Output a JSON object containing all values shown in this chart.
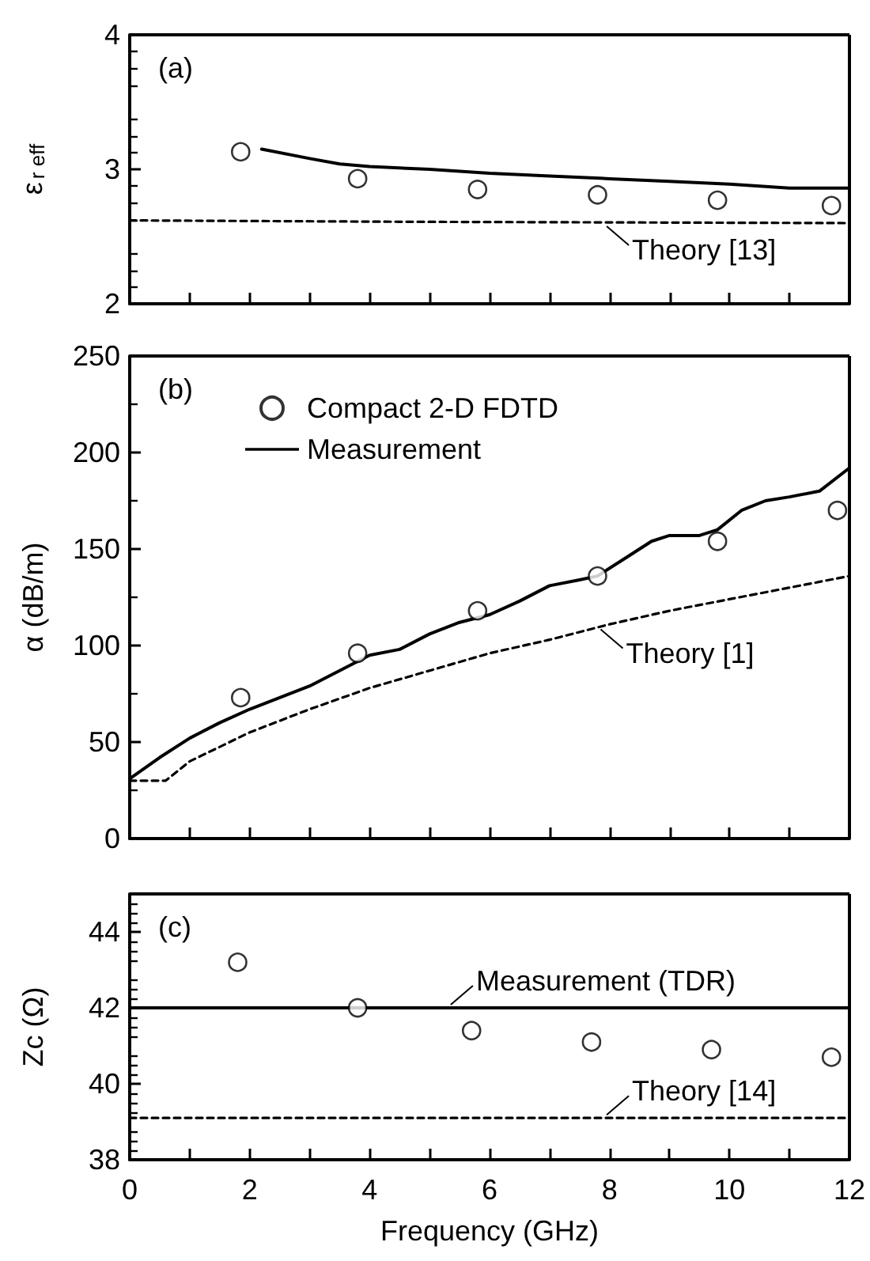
{
  "chart_data": [
    {
      "type": "line",
      "ylabel": "ε$_{r eff}$",
      "xlim": [
        0,
        12
      ],
      "xticks": [
        0,
        2,
        4,
        6,
        8,
        10,
        12
      ],
      "ylim": [
        2,
        4
      ],
      "yticks": [
        2,
        3,
        4
      ],
      "tick_labels": "y",
      "annotations": [
        "(a)",
        {
          "text": "Theory [13]",
          "x": 7.9,
          "y": 2.6
        }
      ],
      "series": [
        {
          "type": "scatter",
          "marker": "circle",
          "color": "#000000",
          "x": [
            1.85,
            3.8,
            5.8,
            7.8,
            9.8,
            11.7
          ],
          "values": [
            3.13,
            2.93,
            2.85,
            2.81,
            2.77,
            2.73
          ]
        },
        {
          "marker": "none",
          "line_style": "solid",
          "color": "#000000",
          "x": [
            2.2,
            3,
            3.5,
            4,
            5,
            6,
            7,
            8,
            9,
            10,
            11,
            12
          ],
          "values": [
            3.15,
            3.08,
            3.04,
            3.02,
            3.0,
            2.97,
            2.95,
            2.93,
            2.91,
            2.89,
            2.86,
            2.86
          ]
        },
        {
          "marker": "none",
          "line_style": "dashed",
          "color": "#000000",
          "x": [
            0,
            4.5,
            12
          ],
          "values": [
            2.62,
            2.61,
            2.6
          ]
        }
      ]
    },
    {
      "type": "line",
      "ylabel": "α (dB/m)",
      "xlim": [
        0,
        12
      ],
      "xticks": [
        0,
        2,
        4,
        6,
        8,
        10,
        12
      ],
      "ylim": [
        0,
        250
      ],
      "yticks": [
        0,
        50,
        100,
        150,
        200,
        250
      ],
      "tick_labels": "y",
      "legend": "top left",
      "annotations": [
        "(b)",
        {
          "text": "Theory [1]",
          "x": 7.8,
          "y": 110
        }
      ],
      "series": [
        {
          "type": "scatter",
          "name": "Compact 2-D FDTD",
          "marker": "circle",
          "color": "#000000",
          "x": [
            1.85,
            3.8,
            5.8,
            7.8,
            9.8,
            11.8
          ],
          "values": [
            73,
            96,
            118,
            136,
            154,
            170
          ]
        },
        {
          "name": "Measurement",
          "marker": "none",
          "line_style": "solid",
          "color": "#000000",
          "x": [
            0,
            0.5,
            1,
            1.5,
            2,
            2.5,
            3,
            3.5,
            4,
            4.5,
            5,
            5.5,
            6,
            6.5,
            7,
            7.5,
            7.8,
            8.3,
            8.7,
            9,
            9.5,
            9.8,
            10.2,
            10.6,
            11,
            11.5,
            12
          ],
          "values": [
            31,
            42,
            52,
            60,
            67,
            73,
            79,
            87,
            95,
            98,
            106,
            112,
            116,
            123,
            131,
            134,
            136,
            146,
            154,
            157,
            157,
            160,
            170,
            175,
            177,
            180,
            192
          ]
        },
        {
          "marker": "none",
          "line_style": "dashed",
          "color": "#000000",
          "x": [
            0,
            0.6,
            1,
            2,
            3,
            4,
            5,
            6,
            7,
            8,
            9,
            10,
            11,
            12
          ],
          "values": [
            30,
            30,
            40,
            55,
            67,
            78,
            87,
            96,
            103,
            111,
            118,
            124,
            130,
            136
          ]
        }
      ]
    },
    {
      "type": "line",
      "ylabel": "Zc (Ω)",
      "xlabel": "Frequency (GHz)",
      "xlim": [
        0,
        12
      ],
      "xticks": [
        0,
        2,
        4,
        6,
        8,
        10,
        12
      ],
      "ylim": [
        38,
        45
      ],
      "yticks": [
        38,
        40,
        42,
        44
      ],
      "annotations": [
        "(c)",
        {
          "text": "Measurement (TDR)",
          "x": 5.3,
          "y": 42
        },
        {
          "text": "Theory [14]",
          "x": 7.9,
          "y": 39.1
        }
      ],
      "series": [
        {
          "type": "scatter",
          "marker": "circle",
          "color": "#000000",
          "x": [
            1.8,
            3.8,
            5.7,
            7.7,
            9.7,
            11.7
          ],
          "values": [
            43.2,
            42.0,
            41.4,
            41.1,
            40.9,
            40.7
          ]
        },
        {
          "marker": "none",
          "line_style": "solid",
          "color": "#000000",
          "x": [
            0,
            12
          ],
          "values": [
            42,
            42
          ]
        },
        {
          "marker": "none",
          "line_style": "dashed",
          "color": "#000000",
          "x": [
            0,
            12
          ],
          "values": [
            39.1,
            39.1
          ]
        }
      ]
    }
  ]
}
